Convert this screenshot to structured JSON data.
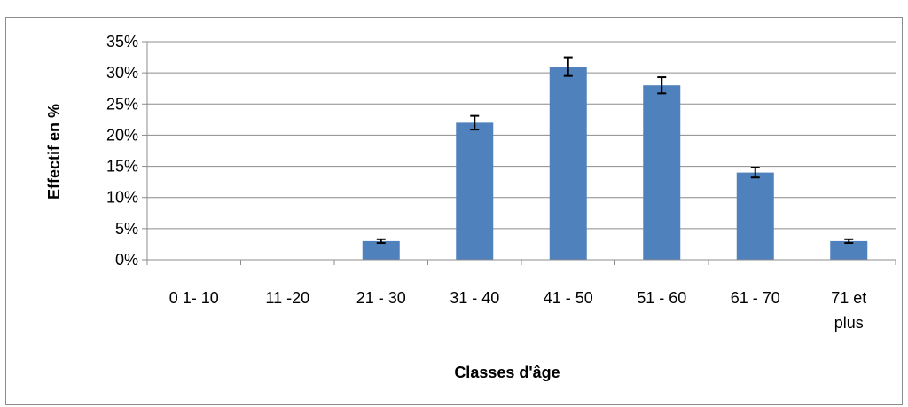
{
  "chart_data": {
    "type": "bar",
    "xlabel": "Classes d'âge",
    "ylabel": "Effectif en %",
    "categories": [
      "0 1- 10",
      "11 -20",
      "21 - 30",
      "31 - 40",
      "41 - 50",
      "51 - 60",
      "61 - 70",
      "71 et plus"
    ],
    "values": [
      0,
      0,
      3,
      22,
      31,
      28,
      14,
      3
    ],
    "error": [
      0,
      0,
      0.3,
      1.1,
      1.5,
      1.3,
      0.8,
      0.3
    ],
    "ylim": [
      0,
      35
    ],
    "yticks": [
      "0%",
      "5%",
      "10%",
      "15%",
      "20%",
      "25%",
      "30%",
      "35%"
    ],
    "grid": true,
    "legend": "none",
    "bar_color": "#4f81bd"
  }
}
